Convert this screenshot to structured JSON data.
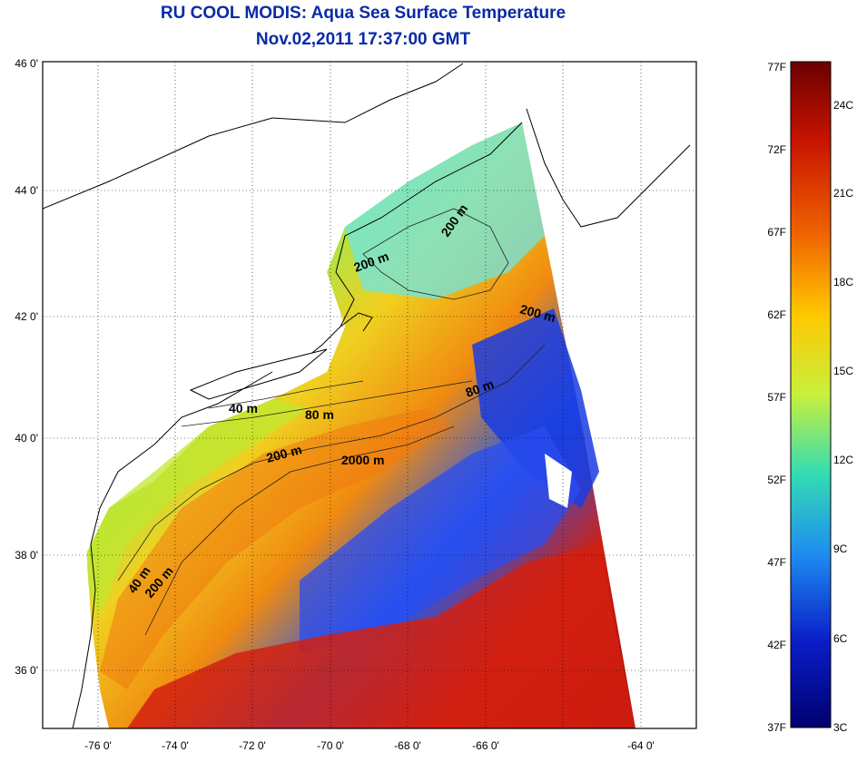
{
  "title": "RU COOL MODIS: Aqua Sea Surface Temperature",
  "subtitle": "Nov.02,2011 17:37:00 GMT",
  "latitude_labels": [
    "46 0'",
    "44 0'",
    "42 0'",
    "40 0'",
    "38 0'",
    "36 0'"
  ],
  "longitude_labels": [
    "-76 0'",
    "-74 0'",
    "-72 0'",
    "-70 0'",
    "-68 0'",
    "-66 0'",
    "-64 0'"
  ],
  "contour_labels": [
    "200 m",
    "200 m",
    "200 m",
    "40 m",
    "80 m",
    "80 m",
    "200 m",
    "2000 m",
    "40 m",
    "200 m"
  ],
  "colorbar": {
    "fahrenheit_labels": [
      "77F",
      "72F",
      "67F",
      "62F",
      "57F",
      "52F",
      "47F",
      "42F",
      "37F"
    ],
    "celsius_labels": [
      "24C",
      "21C",
      "18C",
      "15C",
      "12C",
      "9C",
      "6C",
      "3C"
    ],
    "colors": [
      "#6b0000",
      "#c81400",
      "#f06400",
      "#ffc800",
      "#c8f03c",
      "#32dcb4",
      "#1e8cf0",
      "#0a1ec8",
      "#000070"
    ]
  },
  "colors": {
    "title": "#0a2aa8",
    "coast": "#000000",
    "land": "#ffffff"
  }
}
